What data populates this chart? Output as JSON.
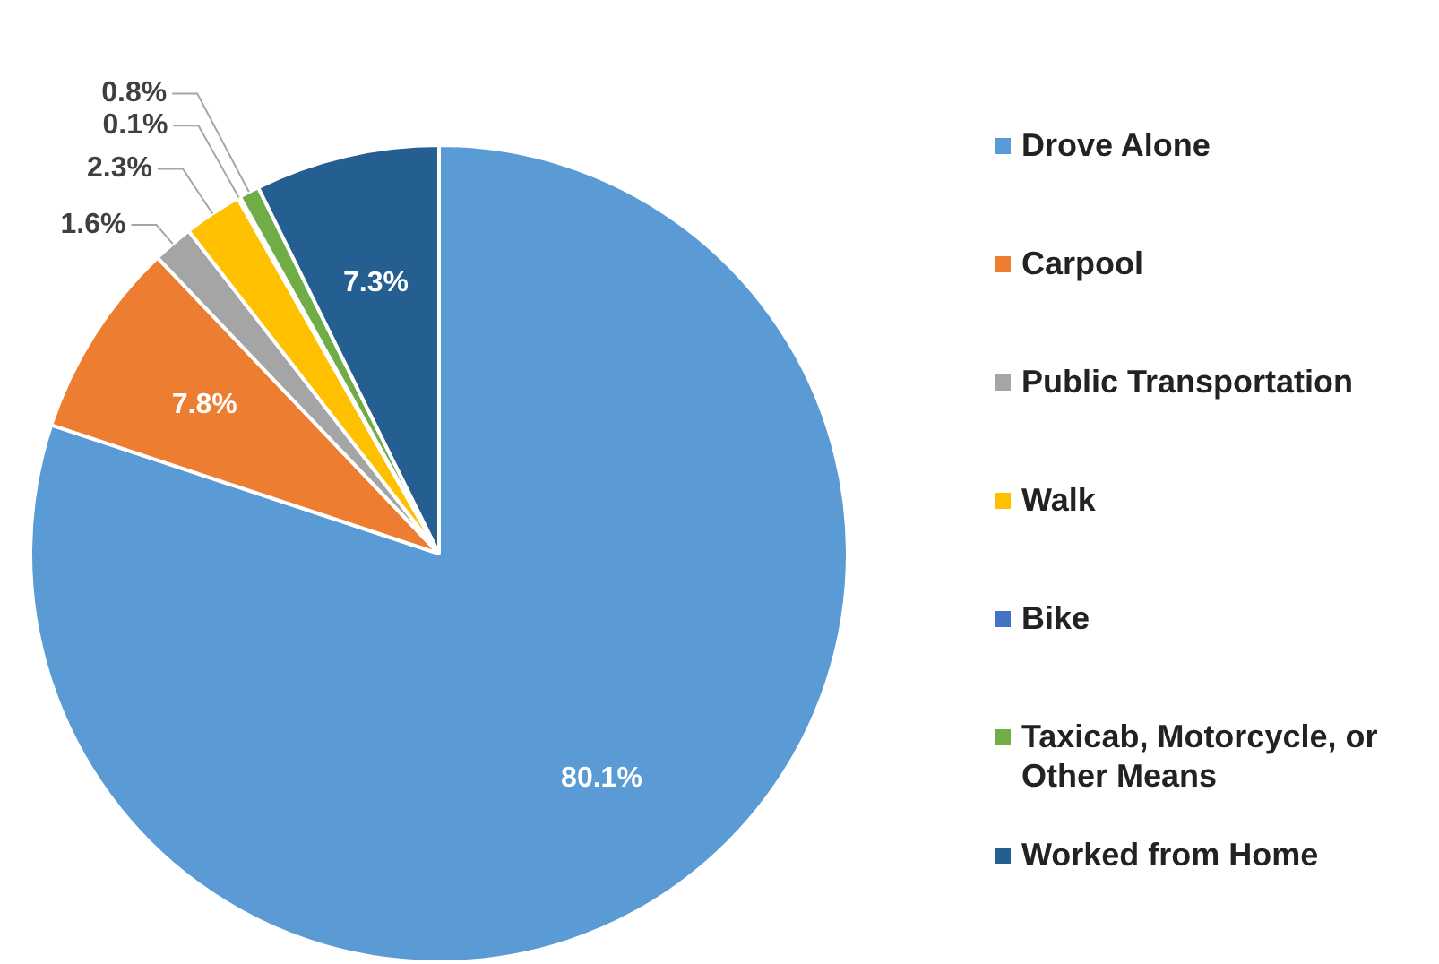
{
  "chart_data": {
    "type": "pie",
    "categories": [
      "Drove Alone",
      "Carpool",
      "Public Transportation",
      "Walk",
      "Bike",
      "Taxicab, Motorcycle, or Other Means",
      "Worked from Home"
    ],
    "values": [
      80.1,
      7.8,
      1.6,
      2.3,
      0.1,
      0.8,
      7.3
    ],
    "value_labels": [
      "80.1%",
      "7.8%",
      "1.6%",
      "2.3%",
      "0.1%",
      "0.8%",
      "7.3%"
    ],
    "colors": [
      "#5b9bd5",
      "#ed7d31",
      "#a5a5a5",
      "#ffc000",
      "#4472c4",
      "#70ad47",
      "#255e91"
    ],
    "legend": "right"
  }
}
